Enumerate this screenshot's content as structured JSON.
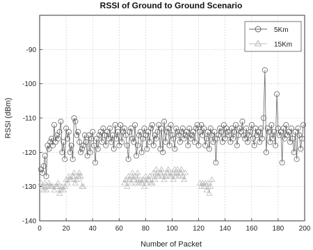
{
  "chart_data": {
    "type": "line",
    "title": "RSSI of Ground to Ground Scenario",
    "xlabel": "Number of Packet",
    "ylabel": "RSSI (dBm)",
    "xlim": [
      0,
      200
    ],
    "ylim": [
      -140,
      -80
    ],
    "xticks": [
      0,
      20,
      40,
      60,
      80,
      100,
      120,
      140,
      160,
      180,
      200
    ],
    "yticks": [
      -140,
      -130,
      -120,
      -110,
      -100,
      -90
    ],
    "xtick_labels": [
      "0",
      "20",
      "40",
      "60",
      "80",
      "100",
      "120",
      "140",
      "160",
      "180",
      "200"
    ],
    "ytick_labels": [
      "-140",
      "-130",
      "-120",
      "-110",
      "-100",
      "-90"
    ],
    "grid": true,
    "legend_position": "top-right",
    "series": [
      {
        "name": "5Km",
        "marker": "circle",
        "color": "#666666",
        "x": [
          1,
          2,
          3,
          4,
          5,
          6,
          7,
          8,
          9,
          10,
          11,
          12,
          13,
          14,
          15,
          16,
          17,
          18,
          19,
          20,
          21,
          22,
          23,
          24,
          25,
          26,
          27,
          28,
          29,
          30,
          31,
          32,
          33,
          34,
          35,
          36,
          37,
          38,
          39,
          40,
          41,
          42,
          43,
          44,
          45,
          46,
          47,
          48,
          49,
          50,
          51,
          52,
          53,
          54,
          55,
          56,
          57,
          58,
          59,
          60,
          61,
          62,
          63,
          64,
          65,
          66,
          67,
          68,
          69,
          70,
          71,
          72,
          73,
          74,
          75,
          76,
          77,
          78,
          79,
          80,
          81,
          82,
          83,
          84,
          85,
          86,
          87,
          88,
          89,
          90,
          91,
          92,
          93,
          94,
          95,
          96,
          97,
          98,
          99,
          100,
          101,
          102,
          103,
          104,
          105,
          106,
          107,
          108,
          109,
          110,
          111,
          112,
          113,
          114,
          115,
          116,
          117,
          118,
          119,
          120,
          121,
          122,
          123,
          124,
          125,
          126,
          127,
          128,
          129,
          130,
          131,
          132,
          133,
          134,
          135,
          136,
          137,
          138,
          139,
          140,
          141,
          142,
          143,
          144,
          145,
          146,
          147,
          148,
          149,
          150,
          151,
          152,
          153,
          154,
          155,
          156,
          157,
          158,
          159,
          160,
          161,
          162,
          163,
          164,
          165,
          166,
          167,
          168,
          169,
          170,
          171,
          172,
          173,
          174,
          175,
          176,
          177,
          178,
          179,
          180,
          181,
          182,
          183,
          184,
          185,
          186,
          187,
          188,
          189,
          190,
          191,
          192,
          193,
          194,
          195,
          196,
          197,
          198,
          199
        ],
        "y": [
          -125,
          -126,
          -124,
          -121,
          -127,
          -118,
          -119,
          -117,
          -116,
          -118,
          -112,
          -117,
          -115,
          -116,
          -114,
          -111,
          -120,
          -117,
          -122,
          -113,
          -116,
          -114,
          -120,
          -118,
          -122,
          -110,
          -111,
          -115,
          -114,
          -117,
          -120,
          -119,
          -118,
          -115,
          -117,
          -121,
          -115,
          -120,
          -116,
          -114,
          -118,
          -123,
          -116,
          -119,
          -115,
          -114,
          -117,
          -113,
          -115,
          -118,
          -114,
          -116,
          -113,
          -117,
          -115,
          -119,
          -112,
          -116,
          -114,
          -118,
          -112,
          -117,
          -114,
          -113,
          -115,
          -118,
          -122,
          -114,
          -113,
          -116,
          -117,
          -112,
          -121,
          -118,
          -115,
          -114,
          -120,
          -116,
          -113,
          -115,
          -119,
          -114,
          -117,
          -113,
          -112,
          -118,
          -115,
          -116,
          -114,
          -112,
          -119,
          -113,
          -120,
          -111,
          -117,
          -114,
          -113,
          -118,
          -112,
          -115,
          -116,
          -119,
          -113,
          -114,
          -115,
          -117,
          -114,
          -113,
          -116,
          -115,
          -114,
          -118,
          -113,
          -116,
          -115,
          -114,
          -117,
          -113,
          -112,
          -118,
          -114,
          -112,
          -115,
          -113,
          -118,
          -116,
          -114,
          -119,
          -113,
          -115,
          -117,
          -114,
          -123,
          -116,
          -115,
          -113,
          -114,
          -117,
          -112,
          -116,
          -113,
          -114,
          -115,
          -117,
          -113,
          -116,
          -114,
          -112,
          -118,
          -115,
          -113,
          -114,
          -111,
          -115,
          -116,
          -113,
          -117,
          -115,
          -114,
          -112,
          -116,
          -118,
          -113,
          -115,
          -114,
          -117,
          -113,
          -116,
          -110,
          -96,
          -120,
          -113,
          -114,
          -117,
          -112,
          -116,
          -114,
          -118,
          -103,
          -113,
          -115,
          -114,
          -123,
          -113,
          -116,
          -112,
          -115,
          -114,
          -117,
          -113,
          -116,
          -120,
          -114,
          -122,
          -113,
          -115,
          -119,
          -116,
          -112
        ]
      },
      {
        "name": "15Km",
        "marker": "triangle",
        "color": "#bbbbbb",
        "x": [
          1,
          2,
          3,
          4,
          5,
          6,
          7,
          8,
          9,
          10,
          11,
          12,
          13,
          14,
          15,
          16,
          17,
          18,
          19,
          20,
          21,
          22,
          23,
          24,
          25,
          26,
          27,
          28,
          29,
          30,
          31,
          32,
          33,
          64,
          65,
          66,
          67,
          68,
          69,
          70,
          71,
          72,
          73,
          74,
          75,
          76,
          77,
          78,
          79,
          80,
          81,
          82,
          83,
          84,
          85,
          86,
          87,
          88,
          89,
          90,
          91,
          92,
          93,
          94,
          95,
          96,
          97,
          98,
          99,
          100,
          101,
          102,
          103,
          104,
          105,
          106,
          107,
          108,
          109,
          110,
          121,
          122,
          123,
          124,
          125,
          126,
          127,
          128,
          129,
          130
        ],
        "y": [
          -129,
          -130,
          -131,
          -129,
          -131,
          -130,
          -129,
          -130,
          -130,
          -130,
          -131,
          -130,
          -130,
          -129,
          -132,
          -131,
          -130,
          -131,
          -130,
          -128,
          -129,
          -127,
          -128,
          -128,
          -127,
          -126,
          -129,
          -128,
          -127,
          -126,
          -127,
          -130,
          -130,
          -129,
          -128,
          -130,
          -127,
          -128,
          -129,
          -126,
          -128,
          -127,
          -129,
          -126,
          -129,
          -128,
          -129,
          -128,
          -130,
          -127,
          -129,
          -128,
          -127,
          -129,
          -129,
          -126,
          -128,
          -125,
          -127,
          -127,
          -126,
          -125,
          -127,
          -128,
          -127,
          -126,
          -125,
          -127,
          -127,
          -126,
          -128,
          -125,
          -127,
          -125,
          -127,
          -126,
          -125,
          -127,
          -128,
          -126,
          -129,
          -130,
          -129,
          -130,
          -129,
          -131,
          -129,
          -132,
          -130,
          -128
        ]
      }
    ]
  }
}
